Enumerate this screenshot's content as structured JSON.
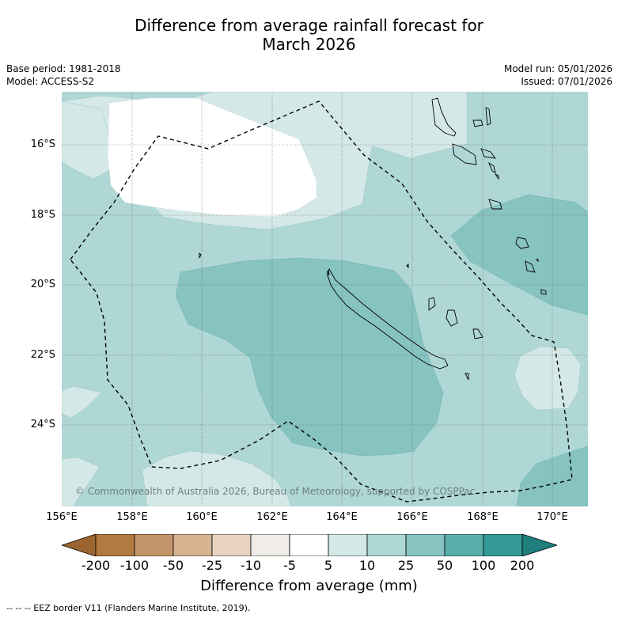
{
  "title": {
    "line1": "Difference from average rainfall forecast for",
    "line2": "March 2026"
  },
  "meta": {
    "base_period": "Base period: 1981-2018",
    "model": "Model: ACCESS-S2",
    "model_run": "Model run: 05/01/2026",
    "issued": "Issued: 07/01/2026"
  },
  "map": {
    "lat_labels": [
      "16°S",
      "18°S",
      "20°S",
      "22°S",
      "24°S"
    ],
    "lon_labels": [
      "156°E",
      "158°E",
      "160°E",
      "162°E",
      "164°E",
      "166°E",
      "168°E",
      "170°E"
    ],
    "copyright": "© Commonwealth of Australia 2026, Bureau of Meteorology, supported by COSPPac"
  },
  "colorbar": {
    "ticks": [
      "-200",
      "-100",
      "-50",
      "-25",
      "-10",
      "-5",
      "5",
      "10",
      "25",
      "50",
      "100",
      "200"
    ],
    "colors": [
      "#9c6530",
      "#b07a40",
      "#c4956a",
      "#d6b492",
      "#e7d3bf",
      "#f0ece8",
      "#ffffff",
      "#d4e9e7",
      "#aed7d5",
      "#86c3c1",
      "#5aafad",
      "#359b98",
      "#1f7f7c"
    ],
    "label": "Difference from average (mm)"
  },
  "footnote": "-- -- -- EEZ border V11 (Flanders Marine Institute, 2019)."
}
